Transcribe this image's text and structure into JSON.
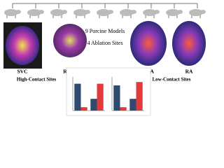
{
  "models_text": "9 Porcine Models",
  "sites_text": "4 Ablation Sites",
  "maps": [
    {
      "label": "SVC"
    },
    {
      "label": "RSPV"
    },
    {
      "label": "LAA"
    },
    {
      "label": "RA"
    }
  ],
  "groups": {
    "high": "High-Contact Sites",
    "low": "Low-Contact Sites"
  },
  "chart_data": [
    {
      "type": "bar",
      "categories": [
        null,
        null
      ],
      "ylim": [
        0,
        1
      ],
      "series": [
        {
          "color": "#2e4a6e",
          "values": [
            0.8,
            0.35
          ]
        },
        {
          "color": "#e03a3a",
          "values": [
            0.1,
            0.8
          ]
        }
      ]
    },
    {
      "type": "bar",
      "categories": [
        null,
        null
      ],
      "ylim": [
        0,
        1
      ],
      "series": [
        {
          "color": "#2e4a6e",
          "values": [
            0.75,
            0.35
          ]
        },
        {
          "color": "#e03a3a",
          "values": [
            0.1,
            0.85
          ]
        }
      ]
    }
  ]
}
